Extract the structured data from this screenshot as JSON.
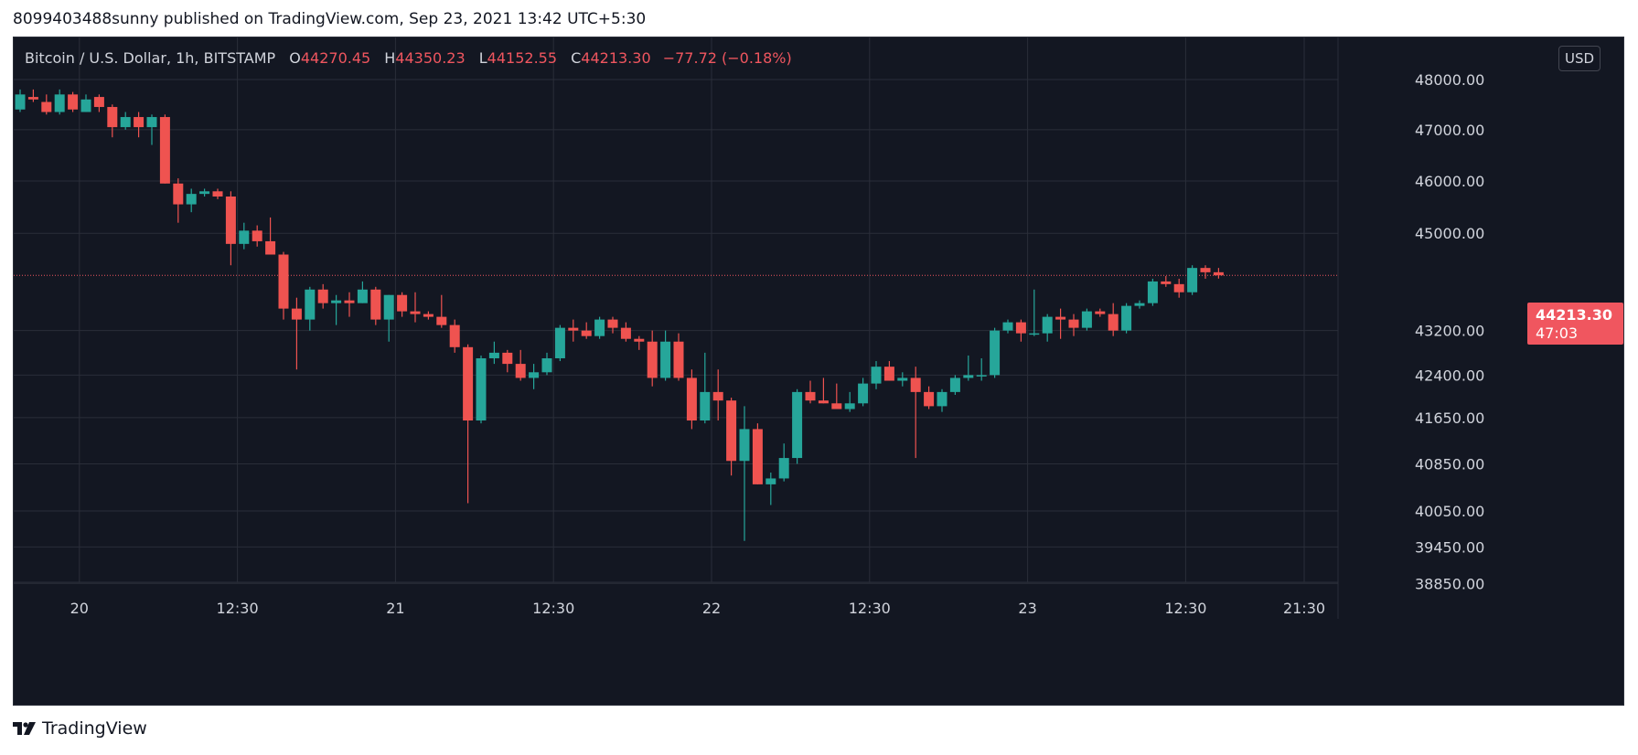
{
  "header": {
    "published_text": "8099403488sunny published on TradingView.com, Sep 23, 2021 13:42 UTC+5:30"
  },
  "legend": {
    "symbol": "Bitcoin / U.S. Dollar, 1h, BITSTAMP",
    "open_label": "O",
    "open": "44270.45",
    "high_label": "H",
    "high": "44350.23",
    "low_label": "L",
    "low": "44152.55",
    "close_label": "C",
    "close": "44213.30",
    "change": "−77.72 (−0.18%)"
  },
  "currency_button": "USD",
  "last_price": {
    "price": "44213.30",
    "countdown": "47:03"
  },
  "footer": {
    "brand": "TradingView"
  },
  "colors": {
    "background": "#131722",
    "grid": "#2a2e39",
    "up": "#26a69a",
    "down": "#ef5350",
    "axis_text": "#d1d4dc",
    "last_price_line": "#f0565f"
  },
  "chart_data": {
    "type": "candlestick",
    "title": "Bitcoin / U.S. Dollar, 1h, BITSTAMP",
    "y_axis": {
      "tick_labels": [
        "48000.00",
        "47000.00",
        "46000.00",
        "45000.00",
        "43200.00",
        "42400.00",
        "41650.00",
        "40850.00",
        "40050.00",
        "39450.00",
        "38850.00"
      ],
      "tick_values": [
        48000,
        47000,
        46000,
        45000,
        43200,
        42400,
        41650,
        40850,
        40050,
        39450,
        38850
      ],
      "log_scale": true
    },
    "x_axis": {
      "tick_labels": [
        "20",
        "12:30",
        "21",
        "12:30",
        "22",
        "12:30",
        "23",
        "12:30",
        "21:30"
      ],
      "tick_index": [
        4.5,
        16.5,
        28.5,
        40.5,
        52.5,
        64.5,
        76.5,
        88.5,
        97.5
      ]
    },
    "last_price": 44213.3,
    "candles": [
      {
        "o": 47400,
        "h": 47800,
        "l": 47350,
        "c": 47700
      },
      {
        "o": 47650,
        "h": 47800,
        "l": 47550,
        "c": 47600
      },
      {
        "o": 47550,
        "h": 47700,
        "l": 47300,
        "c": 47350
      },
      {
        "o": 47350,
        "h": 47800,
        "l": 47300,
        "c": 47700
      },
      {
        "o": 47700,
        "h": 47750,
        "l": 47350,
        "c": 47400
      },
      {
        "o": 47350,
        "h": 47700,
        "l": 47350,
        "c": 47600
      },
      {
        "o": 47650,
        "h": 47700,
        "l": 47350,
        "c": 47450
      },
      {
        "o": 47450,
        "h": 47500,
        "l": 46850,
        "c": 47050
      },
      {
        "o": 47050,
        "h": 47350,
        "l": 47000,
        "c": 47250
      },
      {
        "o": 47250,
        "h": 47350,
        "l": 46850,
        "c": 47050
      },
      {
        "o": 47050,
        "h": 47300,
        "l": 46700,
        "c": 47250
      },
      {
        "o": 47250,
        "h": 47300,
        "l": 45950,
        "c": 45950
      },
      {
        "o": 45950,
        "h": 46050,
        "l": 45200,
        "c": 45550
      },
      {
        "o": 45550,
        "h": 45850,
        "l": 45400,
        "c": 45750
      },
      {
        "o": 45750,
        "h": 45850,
        "l": 45700,
        "c": 45800
      },
      {
        "o": 45800,
        "h": 45850,
        "l": 45650,
        "c": 45700
      },
      {
        "o": 45700,
        "h": 45800,
        "l": 44400,
        "c": 44800
      },
      {
        "o": 44800,
        "h": 45200,
        "l": 44700,
        "c": 45050
      },
      {
        "o": 45050,
        "h": 45150,
        "l": 44750,
        "c": 44850
      },
      {
        "o": 44850,
        "h": 45300,
        "l": 44600,
        "c": 44600
      },
      {
        "o": 44600,
        "h": 44650,
        "l": 43400,
        "c": 43600
      },
      {
        "o": 43600,
        "h": 43800,
        "l": 42500,
        "c": 43400
      },
      {
        "o": 43400,
        "h": 44000,
        "l": 43200,
        "c": 43950
      },
      {
        "o": 43950,
        "h": 44050,
        "l": 43600,
        "c": 43700
      },
      {
        "o": 43700,
        "h": 43850,
        "l": 43300,
        "c": 43750
      },
      {
        "o": 43750,
        "h": 43900,
        "l": 43450,
        "c": 43700
      },
      {
        "o": 43700,
        "h": 44100,
        "l": 43700,
        "c": 43950
      },
      {
        "o": 43950,
        "h": 44000,
        "l": 43300,
        "c": 43400
      },
      {
        "o": 43400,
        "h": 43850,
        "l": 43000,
        "c": 43850
      },
      {
        "o": 43850,
        "h": 43900,
        "l": 43450,
        "c": 43550
      },
      {
        "o": 43550,
        "h": 43900,
        "l": 43350,
        "c": 43500
      },
      {
        "o": 43500,
        "h": 43550,
        "l": 43400,
        "c": 43450
      },
      {
        "o": 43450,
        "h": 43850,
        "l": 43250,
        "c": 43300
      },
      {
        "o": 43300,
        "h": 43400,
        "l": 42800,
        "c": 42900
      },
      {
        "o": 42900,
        "h": 42950,
        "l": 40180,
        "c": 41600
      },
      {
        "o": 41600,
        "h": 42750,
        "l": 41550,
        "c": 42700
      },
      {
        "o": 42700,
        "h": 43000,
        "l": 42600,
        "c": 42800
      },
      {
        "o": 42800,
        "h": 42850,
        "l": 42450,
        "c": 42600
      },
      {
        "o": 42600,
        "h": 42850,
        "l": 42300,
        "c": 42350
      },
      {
        "o": 42350,
        "h": 42600,
        "l": 42150,
        "c": 42450
      },
      {
        "o": 42450,
        "h": 42800,
        "l": 42400,
        "c": 42700
      },
      {
        "o": 42700,
        "h": 43300,
        "l": 42650,
        "c": 43250
      },
      {
        "o": 43250,
        "h": 43400,
        "l": 43000,
        "c": 43200
      },
      {
        "o": 43200,
        "h": 43350,
        "l": 43050,
        "c": 43100
      },
      {
        "o": 43100,
        "h": 43450,
        "l": 43050,
        "c": 43400
      },
      {
        "o": 43400,
        "h": 43450,
        "l": 43150,
        "c": 43250
      },
      {
        "o": 43250,
        "h": 43350,
        "l": 43000,
        "c": 43050
      },
      {
        "o": 43050,
        "h": 43100,
        "l": 42850,
        "c": 43000
      },
      {
        "o": 43000,
        "h": 43200,
        "l": 42200,
        "c": 42350
      },
      {
        "o": 42350,
        "h": 43200,
        "l": 42300,
        "c": 43000
      },
      {
        "o": 43000,
        "h": 43150,
        "l": 42300,
        "c": 42350
      },
      {
        "o": 42350,
        "h": 42500,
        "l": 41450,
        "c": 41600
      },
      {
        "o": 41600,
        "h": 42800,
        "l": 41550,
        "c": 42100
      },
      {
        "o": 42100,
        "h": 42500,
        "l": 41600,
        "c": 41950
      },
      {
        "o": 41950,
        "h": 42000,
        "l": 40650,
        "c": 40900
      },
      {
        "o": 40900,
        "h": 41850,
        "l": 39550,
        "c": 41450
      },
      {
        "o": 41450,
        "h": 41550,
        "l": 40500,
        "c": 40500
      },
      {
        "o": 40500,
        "h": 40700,
        "l": 40150,
        "c": 40600
      },
      {
        "o": 40600,
        "h": 41200,
        "l": 40550,
        "c": 40950
      },
      {
        "o": 40950,
        "h": 42150,
        "l": 40850,
        "c": 42100
      },
      {
        "o": 42100,
        "h": 42300,
        "l": 41900,
        "c": 41950
      },
      {
        "o": 41950,
        "h": 42350,
        "l": 41900,
        "c": 41900
      },
      {
        "o": 41900,
        "h": 42250,
        "l": 41800,
        "c": 41800
      },
      {
        "o": 41800,
        "h": 42100,
        "l": 41750,
        "c": 41900
      },
      {
        "o": 41900,
        "h": 42350,
        "l": 41850,
        "c": 42250
      },
      {
        "o": 42250,
        "h": 42650,
        "l": 42150,
        "c": 42550
      },
      {
        "o": 42550,
        "h": 42650,
        "l": 42300,
        "c": 42300
      },
      {
        "o": 42300,
        "h": 42450,
        "l": 42200,
        "c": 42350
      },
      {
        "o": 42350,
        "h": 42550,
        "l": 40950,
        "c": 42100
      },
      {
        "o": 42100,
        "h": 42200,
        "l": 41800,
        "c": 41850
      },
      {
        "o": 41850,
        "h": 42150,
        "l": 41750,
        "c": 42100
      },
      {
        "o": 42100,
        "h": 42400,
        "l": 42050,
        "c": 42350
      },
      {
        "o": 42350,
        "h": 42750,
        "l": 42300,
        "c": 42400
      },
      {
        "o": 42400,
        "h": 42700,
        "l": 42300,
        "c": 42400
      },
      {
        "o": 42400,
        "h": 43250,
        "l": 42350,
        "c": 43200
      },
      {
        "o": 43200,
        "h": 43400,
        "l": 43150,
        "c": 43350
      },
      {
        "o": 43350,
        "h": 43400,
        "l": 43000,
        "c": 43150
      },
      {
        "o": 43150,
        "h": 43950,
        "l": 43100,
        "c": 43150
      },
      {
        "o": 43150,
        "h": 43500,
        "l": 43000,
        "c": 43450
      },
      {
        "o": 43450,
        "h": 43600,
        "l": 43050,
        "c": 43400
      },
      {
        "o": 43400,
        "h": 43500,
        "l": 43100,
        "c": 43250
      },
      {
        "o": 43250,
        "h": 43600,
        "l": 43200,
        "c": 43550
      },
      {
        "o": 43550,
        "h": 43600,
        "l": 43450,
        "c": 43500
      },
      {
        "o": 43500,
        "h": 43700,
        "l": 43100,
        "c": 43200
      },
      {
        "o": 43200,
        "h": 43700,
        "l": 43150,
        "c": 43650
      },
      {
        "o": 43650,
        "h": 43750,
        "l": 43600,
        "c": 43700
      },
      {
        "o": 43700,
        "h": 44150,
        "l": 43650,
        "c": 44100
      },
      {
        "o": 44100,
        "h": 44200,
        "l": 44000,
        "c": 44050
      },
      {
        "o": 44050,
        "h": 44150,
        "l": 43800,
        "c": 43900
      },
      {
        "o": 43900,
        "h": 44400,
        "l": 43850,
        "c": 44350
      },
      {
        "o": 44350,
        "h": 44400,
        "l": 44150,
        "c": 44270
      },
      {
        "o": 44270.45,
        "h": 44350.23,
        "l": 44152.55,
        "c": 44213.3
      }
    ]
  }
}
